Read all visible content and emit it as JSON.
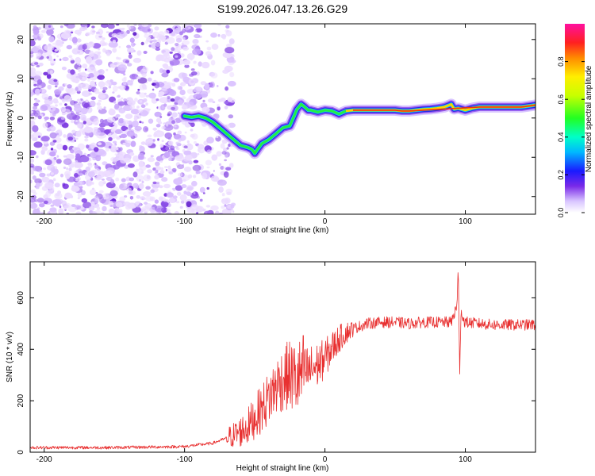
{
  "title": "S199.2026.047.13.26.G29",
  "chart_data": [
    {
      "type": "heatmap",
      "title": "S199.2026.047.13.26.G29",
      "xlabel": "Height of straight line (km)",
      "ylabel": "Frequency (Hz)",
      "xlim": [
        -210,
        150
      ],
      "ylim": [
        -24.5,
        24
      ],
      "xticks": [
        -200,
        -100,
        0,
        100
      ],
      "yticks": [
        -20,
        -10,
        0,
        10,
        20
      ],
      "noise_region_x": [
        -210,
        -65
      ],
      "doppler_trace": {
        "x": [
          -100,
          -95,
          -90,
          -85,
          -80,
          -75,
          -70,
          -65,
          -60,
          -55,
          -52,
          -50,
          -47,
          -45,
          -40,
          -35,
          -30,
          -25,
          -22,
          -20,
          -17,
          -15,
          -12,
          -10,
          -5,
          0,
          5,
          10,
          15,
          20,
          30,
          40,
          50,
          55,
          60,
          65,
          70,
          75,
          80,
          85,
          88,
          90,
          92,
          95,
          100,
          105,
          110,
          120,
          130,
          140,
          150
        ],
        "freq_hz": [
          0.5,
          0.2,
          0.5,
          0,
          -1,
          -2.5,
          -4,
          -5.5,
          -7,
          -7.5,
          -8,
          -9,
          -7.5,
          -6.5,
          -5.5,
          -4,
          -2.5,
          -2,
          0.5,
          2.2,
          3.5,
          3,
          2,
          2,
          1.5,
          2,
          1.8,
          1,
          1.8,
          2,
          2,
          2,
          2,
          1.8,
          1.8,
          2,
          2.2,
          2.3,
          2.5,
          2.8,
          3.2,
          3.5,
          2.3,
          2.5,
          2,
          2.5,
          2.8,
          2.8,
          2.8,
          2.8,
          3.3
        ]
      },
      "colorbar": {
        "label": "Normalized spectral amplitude",
        "range": [
          0,
          1
        ],
        "ticks": [
          "0.0",
          "0.2",
          "0.4",
          "0.6",
          "0.8"
        ]
      }
    },
    {
      "type": "line",
      "xlabel": "Height of straight line (km)",
      "ylabel": "SNR (10 * v/v)",
      "xlim": [
        -210,
        150
      ],
      "ylim": [
        0,
        740
      ],
      "xticks": [
        -200,
        -100,
        0,
        100
      ],
      "yticks": [
        0,
        200,
        400,
        600
      ],
      "color": "#e83030",
      "series": [
        {
          "name": "SNR",
          "x": [
            -210,
            -150,
            -100,
            -80,
            -70,
            -60,
            -55,
            -50,
            -45,
            -40,
            -35,
            -30,
            -25,
            -20,
            -15,
            -10,
            -5,
            0,
            5,
            10,
            15,
            20,
            25,
            30,
            40,
            50,
            60,
            70,
            80,
            90,
            94,
            95,
            96,
            97,
            98,
            100,
            110,
            120,
            130,
            140,
            150
          ],
          "values": [
            18,
            18,
            22,
            35,
            55,
            80,
            100,
            135,
            170,
            210,
            255,
            285,
            300,
            280,
            310,
            320,
            340,
            365,
            405,
            440,
            465,
            480,
            490,
            500,
            505,
            505,
            500,
            505,
            505,
            505,
            570,
            720,
            300,
            560,
            520,
            505,
            500,
            495,
            495,
            495,
            495
          ]
        }
      ]
    }
  ]
}
